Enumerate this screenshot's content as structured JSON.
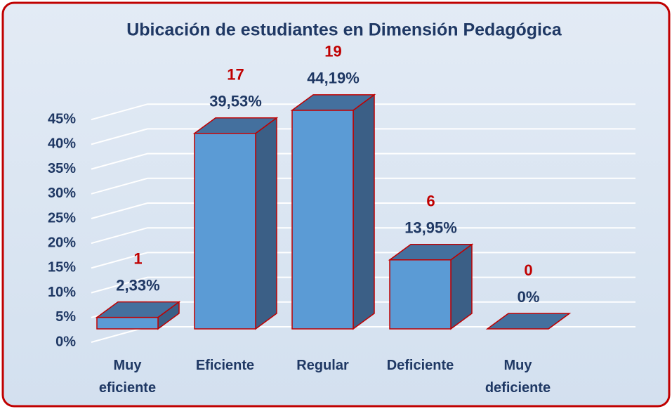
{
  "chart_data": {
    "type": "bar3d",
    "title": "Ubicación  de estudiantes en Dimensión Pedagógica",
    "categories": [
      "Muy eficiente",
      "Eficiente",
      "Regular",
      "Deficiente",
      "Muy deficiente"
    ],
    "values": [
      2.33,
      39.53,
      44.19,
      13.95,
      0
    ],
    "value_labels": [
      "2,33%",
      "39,53%",
      "44,19%",
      "13,95%",
      "0%"
    ],
    "counts": [
      1,
      17,
      19,
      6,
      0
    ],
    "colors": {
      "front": "#5b9bd5",
      "top": "#44709e",
      "side": "#3b5f86",
      "outline": "#c00000"
    },
    "ylim": [
      0,
      50
    ],
    "yticks": [
      {
        "value": 0,
        "label": "0%"
      },
      {
        "value": 5,
        "label": "5%"
      },
      {
        "value": 10,
        "label": "10%"
      },
      {
        "value": 15,
        "label": "15%"
      },
      {
        "value": 20,
        "label": "20%"
      },
      {
        "value": 25,
        "label": "25%"
      },
      {
        "value": 30,
        "label": "30%"
      },
      {
        "value": 35,
        "label": "35%"
      },
      {
        "value": 40,
        "label": "40%"
      },
      {
        "value": 45,
        "label": "45%"
      }
    ],
    "grid": true
  }
}
